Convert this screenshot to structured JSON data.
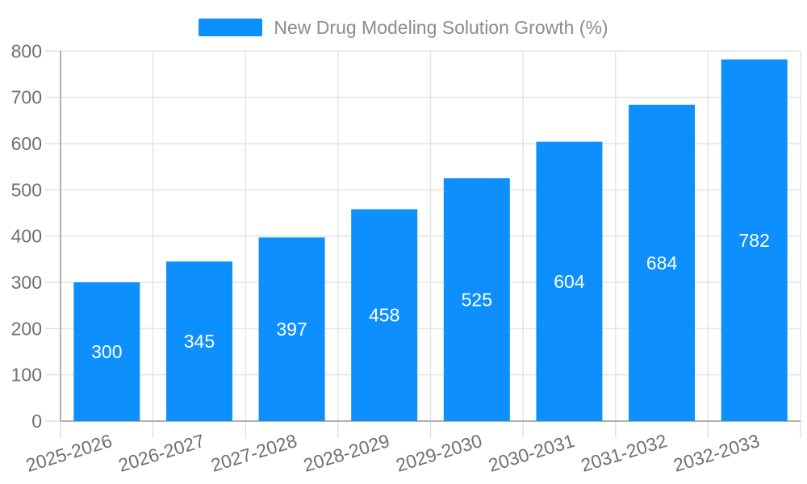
{
  "chart_data": {
    "type": "bar",
    "title": "New Drug Modeling Solution Growth (%)",
    "categories": [
      "2025-2026",
      "2026-2027",
      "2027-2028",
      "2028-2029",
      "2029-2030",
      "2030-2031",
      "2031-2032",
      "2032-2033"
    ],
    "values": [
      300,
      345,
      397,
      458,
      525,
      604,
      684,
      782
    ],
    "yticks": [
      0,
      100,
      200,
      300,
      400,
      500,
      600,
      700,
      800
    ],
    "ylim": [
      0,
      800
    ],
    "xlabel": "",
    "ylabel": "",
    "grid": true,
    "legend_position": "top",
    "value_labels_inside_bars": true,
    "colors": {
      "bar": "#0d90fe",
      "bar_value_text": "#ffffff",
      "axis_text": "#707070",
      "legend_text": "#8c8c8c",
      "grid_line": "#e4e4e4",
      "axis_line": "#b0b0b0",
      "tick_line": "#e0e0e0",
      "background": "#ffffff"
    }
  }
}
